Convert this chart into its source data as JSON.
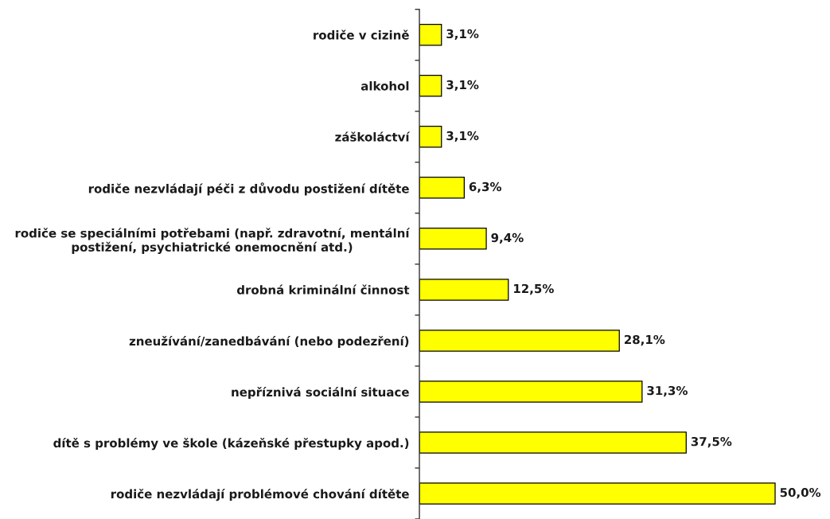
{
  "chart_data": {
    "type": "bar",
    "orientation": "horizontal",
    "categories": [
      "rodiče v cizině",
      "alkohol",
      "záškoláctví",
      "rodiče nezvládají péči z důvodu postižení dítěte",
      "rodiče se speciálními potřebami (např. zdravotní, mentální\npostižení, psychiatrické onemocnění atd.)",
      "drobná kriminální činnost",
      "zneužívání/zanedbávání (nebo podezření)",
      "nepříznivá sociální situace",
      "dítě s problémy ve škole (kázeňské přestupky apod.)",
      "rodiče nezvládají problémové chování dítěte"
    ],
    "values": [
      3.1,
      3.1,
      3.1,
      6.3,
      9.4,
      12.5,
      28.1,
      31.3,
      37.5,
      50.0
    ],
    "value_labels": [
      "3,1%",
      "3,1%",
      "3,1%",
      "6,3%",
      "9,4%",
      "12,5%",
      "28,1%",
      "31,3%",
      "37,5%",
      "50,0%"
    ],
    "color": "#ffff00"
  }
}
